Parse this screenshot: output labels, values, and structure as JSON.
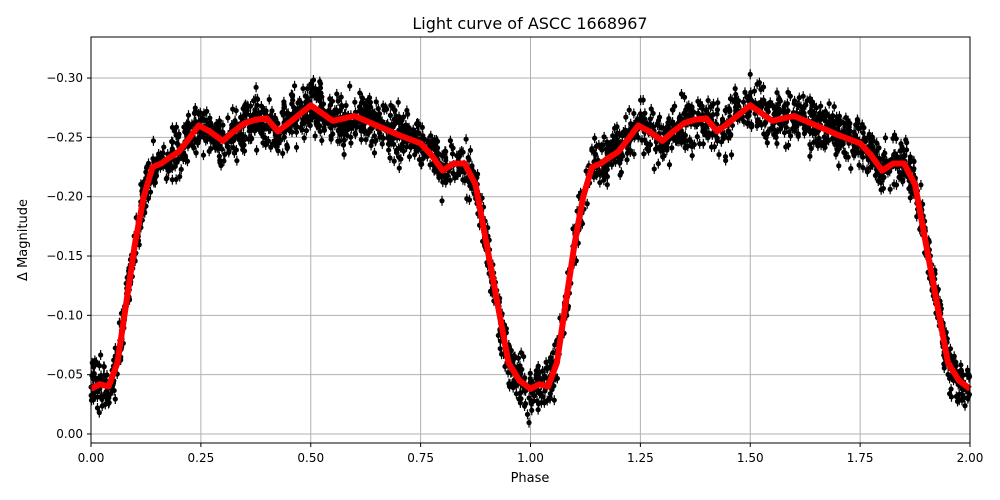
{
  "chart_data": {
    "type": "scatter",
    "title": "Light curve of ASCC 1668967",
    "xlabel": "Phase",
    "ylabel": "Δ Magnitude",
    "xlim": [
      0,
      2
    ],
    "ylim": [
      0.0076,
      -0.3346
    ],
    "y_inverted": true,
    "grid": true,
    "x_ticks": [
      "0.00",
      "0.25",
      "0.50",
      "0.75",
      "1.00",
      "1.25",
      "1.50",
      "1.75",
      "2.00"
    ],
    "x_tick_values": [
      0,
      0.25,
      0.5,
      0.75,
      1,
      1.25,
      1.5,
      1.75,
      2
    ],
    "y_ticks": [
      "−0.30",
      "−0.25",
      "−0.20",
      "−0.15",
      "−0.10",
      "−0.05",
      "0.00"
    ],
    "y_tick_values": [
      -0.3,
      -0.25,
      -0.2,
      -0.15,
      -0.1,
      -0.05,
      0.0
    ],
    "colors": {
      "observations": "#000000",
      "model": "#ff0000",
      "grid": "#b0b0b0"
    },
    "series": [
      {
        "role": "model",
        "style": "line",
        "x": [
          0,
          0.02,
          0.04,
          0.06,
          0.08,
          0.1,
          0.12,
          0.14,
          0.16,
          0.175,
          0.2,
          0.225,
          0.245,
          0.27,
          0.3,
          0.325,
          0.35,
          0.375,
          0.4,
          0.425,
          0.45,
          0.5,
          0.55,
          0.6,
          0.65,
          0.7,
          0.75,
          0.775,
          0.8,
          0.825,
          0.85,
          0.875,
          0.9,
          0.925,
          0.95,
          0.975,
          1.0
        ],
        "y": [
          -0.038,
          -0.042,
          -0.04,
          -0.06,
          -0.11,
          -0.16,
          -0.2,
          -0.225,
          -0.228,
          -0.232,
          -0.238,
          -0.25,
          -0.26,
          -0.255,
          -0.247,
          -0.255,
          -0.262,
          -0.265,
          -0.266,
          -0.255,
          -0.262,
          -0.277,
          -0.264,
          -0.268,
          -0.26,
          -0.252,
          -0.245,
          -0.235,
          -0.222,
          -0.228,
          -0.228,
          -0.21,
          -0.16,
          -0.11,
          -0.06,
          -0.045,
          -0.038
        ],
        "repeats_every_phase": 1
      },
      {
        "role": "observations",
        "style": "points-with-errorbars",
        "scatter_about_model": 0.02
      }
    ]
  }
}
